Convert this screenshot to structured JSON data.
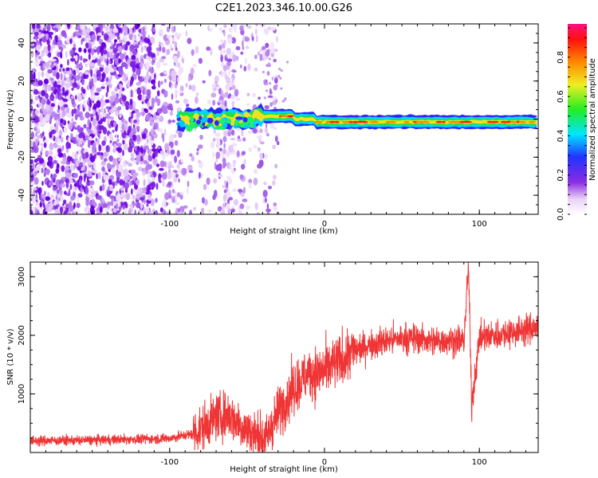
{
  "title": "C2E1.2023.346.10.00.G26",
  "colors": {
    "snr_line": "#ef3535",
    "frame": "#000000"
  },
  "chart_data": [
    {
      "type": "heatmap",
      "xlabel": "Height of straight line (km)",
      "ylabel": "Frequency (Hz)",
      "xlim": [
        -190,
        138
      ],
      "ylim": [
        -50,
        50
      ],
      "xticks": [
        -100,
        0,
        100
      ],
      "yticks": [
        -40,
        -20,
        0,
        20,
        40
      ],
      "colorbar": {
        "label": "Normalized spectral amplitude",
        "range": [
          0,
          0.97
        ],
        "ticks": [
          0.0,
          0.2,
          0.4,
          0.6,
          0.8
        ],
        "colormap": "rainbow-to-white"
      },
      "features": {
        "signal_line_frequency_hz": -1.5,
        "signal_line_start_km": -95,
        "noise_region_end_km": -30
      }
    },
    {
      "type": "line",
      "xlabel": "Height of straight line (km)",
      "ylabel": "SNR (10 * v/v)",
      "xlim": [
        -190,
        138
      ],
      "ylim": [
        0,
        3250
      ],
      "xticks": [
        -100,
        0,
        100
      ],
      "yticks": [
        1000,
        2000,
        3000
      ],
      "series": [
        {
          "x": [
            -190,
            -150,
            -100,
            -85,
            -70,
            -62,
            -50,
            -38,
            -30,
            -20,
            -10,
            0,
            10,
            20,
            30,
            40,
            50,
            60,
            70,
            80,
            90,
            93,
            95,
            100,
            110,
            120,
            130,
            138
          ],
          "y": [
            200,
            210,
            240,
            320,
            600,
            650,
            380,
            220,
            700,
            1100,
            1350,
            1400,
            1550,
            1750,
            1850,
            1900,
            1950,
            1950,
            1900,
            1920,
            1900,
            3200,
            800,
            1950,
            2000,
            2050,
            2100,
            2150
          ]
        }
      ]
    }
  ]
}
